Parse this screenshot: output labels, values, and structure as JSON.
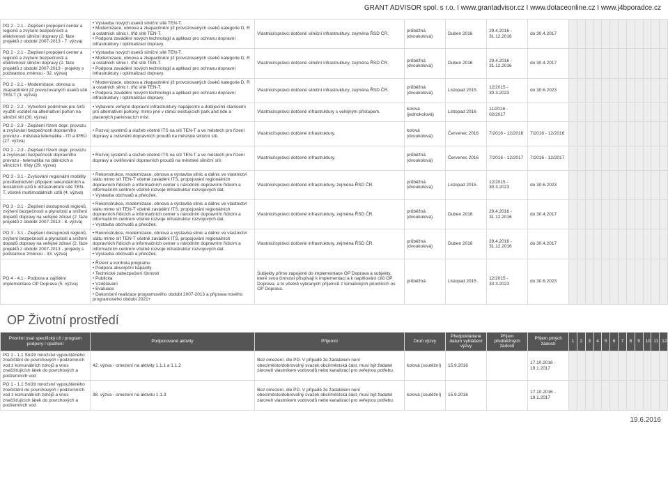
{
  "header_link": "GRANT ADVISOR spol. s r.o. I www.grantadvisor.cz I www.dotaceonline.cz I www.j4bporadce.cz",
  "footer_date": "19.6.2016",
  "section2_title": "OP Životní prostředí",
  "t1": {
    "rows": [
      {
        "c1": "PO 2 - 2.1 - Zlepšení propojení center a regionů a zvýšení bezpečnosti a efektivnosti silniční dopravy (2. fáze projektů z období 2007-2013 - 7. výzva)",
        "c2": "• Výstavba nových úseků silniční sítě TEN-T.\n• Modernizace, obnova a zkapacitnění již provozovaných úseků kategorie D, R a ostatních silnic I. tříd sítě TEN-T.\n• Podpora zavádění nových technologií a aplikací pro ochranu dopravní infrastruktury i optimalizaci dopravy.",
        "c3": "Vlastnici/správci dotčené silniční infrastruktury, zejména ŘSD ČR.",
        "c4": "průběžná (dvoukolová)",
        "c5": "Duben 2016",
        "c6": "29.4.2016 - 31.12.2016",
        "c7": "do 30.4.2017"
      },
      {
        "c1": "PO 2 - 2.1 - Zlepšení propojení center a regionů a zvýšení bezpečnosti a efektivnosti silniční dopravy (2. fáze projektů z období 2007-2013 - projekty s podstatnou změnou - 32. výzva)",
        "c2": "• Výstavba nových úseků silniční sítě TEN-T.\n• Modernizace, obnova a zkapacitnění již provozovaných úseků kategorie D, R a ostatních silnic I. tříd sítě TEN-T.\n• Podpora zavádění nových technologií a aplikací pro ochranu dopravní infrastruktury i optimalizaci dopravy.",
        "c3": "Vlastnici/správci dotčené silniční infrastruktury, zejména ŘSD ČR.",
        "c4": "průběžná (dvoukolová)",
        "c5": "Duben 2016",
        "c6": "29.4.2016 - 31.12.2016",
        "c7": "do 30.4.2017"
      },
      {
        "c1": "PO 2 - 2.1 - Modernizace, obnova a zkapacitnění již provozovaných úseků sítě TEN-T (3. výzva)",
        "c2": "• Modernizace, obnova a zkapacitnění již provozovaných úseků kategorie D, R a ostatních silnic I. tříd sítě TEN-T.\n• Podpora zavádění nových technologií a aplikací pro ochranu dopravní infrastruktury i optimalizaci dopravy.",
        "c3": "Vlastnici/správci dotčené silniční infrastruktury, zejména ŘSD ČR.",
        "c4": "průběžná (dvoukolová)",
        "c5": "Listopad 2015",
        "c6": "12/2015 - 30.3.2023",
        "c7": "do 30.6.2023"
      },
      {
        "c1": "PO 2 - 2.2 - Vytvoření podmínek pro širší využití vozidel na alternativní pohon na silniční síti (30. výzva)",
        "c2": "• Vybavení veřejné dopravní infrastruktury napájecími a dobíjecími stanicemi pro alternativní pohony, mimo jiné v rámci existujících park and ride a placených parkovacích míst.",
        "c3": "Vlastnici/správci dotčené infrastruktury s veřejným přístupem.",
        "c4": "kolová (jednokolová)",
        "c5": "Listopad 2016",
        "c6": "11/2016 - 02/2017",
        "c7": ""
      },
      {
        "c1": "PO 2 - 2.3 - Zlepšení řízení dopr. provozu a zvyšování bezpečnosti dopravního provozu - městská telematika - ITI a IPRÚ (27. výzva)",
        "c2": "• Rozvoj systémů a služeb včetně ITS na síti TEN-T a ve městech pro řízení dopravy a ovlivnění dopravních proudů na městské silniční síti.",
        "c3": "Vlastnici/správci dotčené infrastruktury.",
        "c4": "kolová (dvoukolová)",
        "c5": "Červenec 2016",
        "c6": "7/2016 - 12/2016",
        "c7": "7/2016 - 12/2016"
      },
      {
        "c1": "PO 2 - 2.3 - Zlepšení řízení dopr. provozu a zvyšování bezpečnosti dopravního provozu - telematika na dálnicích a silnicích I. třídy (29. výzva)",
        "c2": "• Rozvoj systémů a služeb včetně ITS na síti TEN-T a ve městech pro řízení dopravy a oviliňování dopravních proudů na městské silniční síti.",
        "c3": "Vlastnici/správci dotčené infrastruktury.",
        "c4": "průběžná (dvoukolová)",
        "c5": "Červenec 2016",
        "c6": "7/2016 - 12/2017",
        "c7": "7/2016 - 12/2017"
      },
      {
        "c1": "PO 3 - 3.1 - Zvyšování regionální mobility prostřednictvím připojení sekundárních a terciálních uzlů k infrastruktuře sítě TEN-T, včetně multimodálních uzlů (4. výzva)",
        "c2": "• Rekonstrukce, modernizace, obnova a výstavba silnic a dálnic ve vlastnictví státu mimo síť TEN-T včetně zavádění ITS, propojování regionálních dopravních řídicích a informačních center s národním dopravním řídicím a informačním centrem včetně rozvoje infrastruktur rozvojových dat.\n• Výstavba obchvatů a přeložek.",
        "c3": "Vlastnici/správci dotčené infrastruktury, zejména ŘSD ČR.",
        "c4": "průběžná (dvoukolová)",
        "c5": "Listopad 2015",
        "c6": "12/2015 - 30.3.2023",
        "c7": "do 30.6.2023"
      },
      {
        "c1": "PO 3 - 3.1 - Zlepšení dostupnosti regionů, zvýšení bezpečnosti a plynulosti a snížení dopadů dopravy na veřejné zdraví (2. fáze projektů z období 2007-2013 - 8. výzva)",
        "c2": "• Rekonstrukce, modernizace, obnova a výstavba silnic a dálnic ve vlastnictví státu mimo síť TEN-T včetně zavádění ITS, propojování regionálních dopravních řídicích a informačních center s národním dopravním řídicím a informačním centrem včetně rozvoje infrastruktur rozvojových dat.\n• Výstavba obchvatů a přeložek.",
        "c3": "Vlastnici/správci dotčené infrastruktury, zejména ŘSD ČR.",
        "c4": "průběžná (dvoukolová)",
        "c5": "Duben 2016",
        "c6": "29.4.2016 - 31.12.2016",
        "c7": "do 30.4.2017"
      },
      {
        "c1": "PO 3 - 3.1 - Zlepšení dostupnosti regionů, zvýšení bezpečnosti a plynulosti a snížení dopadů dopravy na veřejné zdraví (2. fáze projektů z období 2007-2013 - projekty s podstatnou změnou - 33. výzva)",
        "c2": "• Rekonstrukce, modernizace, obnova a výstavba silnic a dálnic ve vlastnictví státu mimo síť TEN-T včetně zavádění ITS, propojování regionálních dopravních řídicích a informačních center s národním dopravním řídicím a informačním centrem včetně rozvoje infrastruktur rozvojových dat.\n• Výstavba obchvatů a přeložek.",
        "c3": "Vlastnici/správci dotčené infrastruktury, zejména ŘSD ČR.",
        "c4": "průběžná (dvoukolová)",
        "c5": "Duben 2016",
        "c6": "29.4.2016 - 31.12.2016",
        "c7": "do 30.4.2017"
      },
      {
        "c1": "PO 4 - 4.1 - Podpora a zajištění implementace OP Doprava (5. výzva)",
        "c2": "• Řízení a kontrola programu\n• Podpora absorpční kapacity\n• Technické zabezpečení činností\n• Publicita\n• Vzdělávání\n• Evaluace\n• Dokončení realizace programového období 2007-2013 a příprava nového programového období 2021+",
        "c3": "Subjekty přímo zapojené do implementace OP Doprava a subjekty, které svou činností přispívají k implementaci a k naplňování cílů OP Doprava, a to včetně vybraných příjemců z tematických prioritních os OP Doprava.",
        "c4": "průběžná",
        "c5": "Listopad 2015",
        "c6": "12/2015 - 30.3.2023",
        "c7": "do 30.6.2023"
      }
    ]
  },
  "t2": {
    "headers": {
      "h1": "Prioritní osa/ specifický cíl / program podpory / opatření",
      "h2": "Podporované aktivity",
      "h3": "Příjemci",
      "h4": "Druh výzvy",
      "h5": "Předpokládané datum vyhlášení výzvy",
      "h6": "Příjem předběžných žádostí",
      "h7": "Příjem plných žádostí"
    },
    "nums": [
      "1",
      "2",
      "3",
      "4",
      "5",
      "6",
      "7",
      "8",
      "9",
      "10",
      "11",
      "12"
    ],
    "rows": [
      {
        "c1": "PO 1 - 1.1 Snížit množství vypouštěného znečištění do povrchových i podzemních vod z komunálních zdrojů a vnos znečišťujících látek do povrchových a podzemních vod",
        "c2": "42. výzva - omezení na aktivity 1.1.1 a 1.1.2",
        "c3": "Bez omezení, dle PD. V případě že žadatelem není obec/město/dobrovolný svazek obcí/městská část, musí být žadatel zároveň vlastníkem vodovodů nebo kanalizací pro veřejnou potřebu.",
        "c4": "kolová (soutěžní)",
        "c5": "15.9.2016",
        "c6": "",
        "c7": "17.10.2016 - 19.1.2017"
      },
      {
        "c1": "PO 1 - 1.1 Snížit množství vypouštěného znečištění do povrchových i podzemních vod z komunálních zdrojů a vnos znečišťujících látek do povrchových a podzemních vod",
        "c2": "38. výzva - omezení na aktivitu 1.1.3",
        "c3": "Bez omezení, dle PD. V případě že žadatelem není obec/město/dobrovolný svazek obcí/městská část, musí být žadatel zároveň vlastníkem vodovodů nebo kanalizací pro veřejnou potřebu.",
        "c4": "kolová (soutěžní)",
        "c5": "15.9.2016",
        "c6": "",
        "c7": "17.10.2016 - 19.1.2017"
      }
    ]
  }
}
